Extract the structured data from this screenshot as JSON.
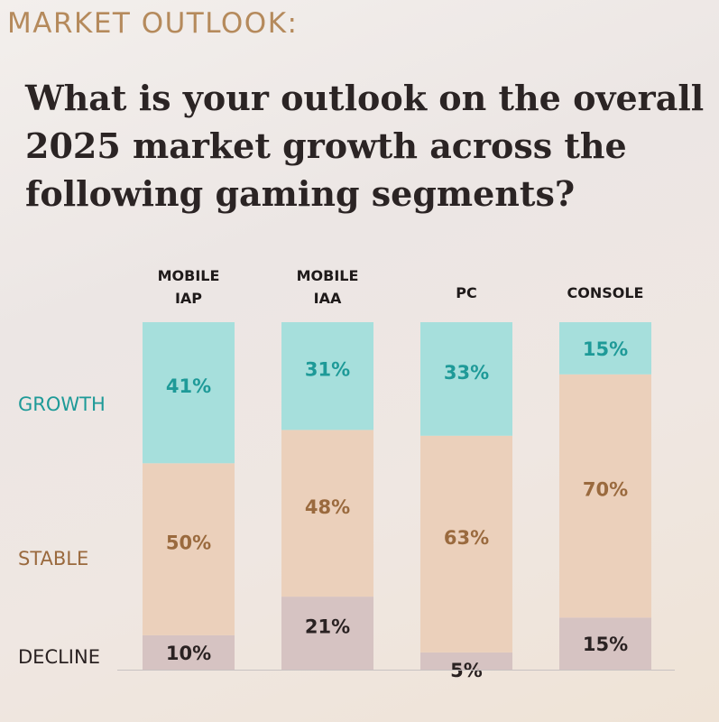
{
  "header": {
    "eyebrow": "MARKET OUTLOOK:",
    "title": "What is your outlook on the overall 2025 market growth across the following gaming segments?"
  },
  "legend": {
    "growth": "GROWTH",
    "stable": "STABLE",
    "decline": "DECLINE"
  },
  "colors": {
    "growth_fill": "#a6dfdc",
    "stable_fill": "#ebd0bb",
    "decline_fill": "#d6c3c2",
    "growth_text": "#1e9a98",
    "stable_text": "#9a6a3e",
    "decline_text": "#2a2222"
  },
  "chart_data": {
    "type": "bar",
    "stacked": true,
    "percent_stacked": true,
    "categories": [
      [
        "MOBILE",
        "IAP"
      ],
      [
        "MOBILE",
        "IAA"
      ],
      [
        "PC"
      ],
      [
        "CONSOLE"
      ]
    ],
    "series": [
      {
        "name": "DECLINE",
        "values": [
          10,
          21,
          5,
          15
        ],
        "labels": [
          "10%",
          "21%",
          "5%",
          "15%"
        ]
      },
      {
        "name": "STABLE",
        "values": [
          50,
          48,
          63,
          70
        ],
        "labels": [
          "50%",
          "48%",
          "63%",
          "70%"
        ]
      },
      {
        "name": "GROWTH",
        "values": [
          41,
          31,
          33,
          15
        ],
        "labels": [
          "41%",
          "31%",
          "33%",
          "15%"
        ]
      }
    ],
    "ylim": [
      0,
      100
    ],
    "grid": false
  }
}
